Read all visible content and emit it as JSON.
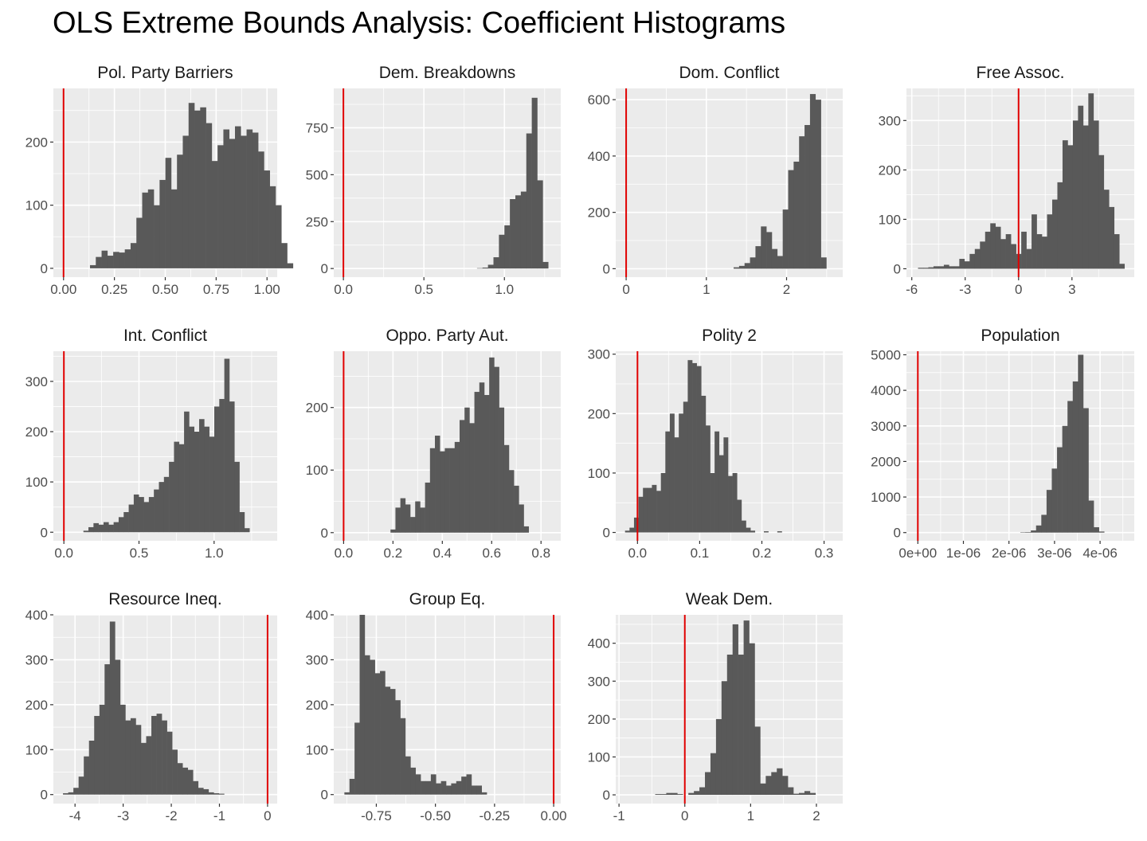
{
  "title": "OLS Extreme Bounds Analysis: Coefficient Histograms",
  "colors": {
    "panel_bg": "#ebebeb",
    "grid": "#ffffff",
    "bars": "#595959",
    "reference_line": "#e00000",
    "tick_text": "#4d4d4d"
  },
  "chart_data": [
    {
      "type": "bar",
      "title": "Pol. Party Barriers",
      "xlim": [
        -0.05,
        1.05
      ],
      "ylim": [
        -14,
        285
      ],
      "xticks": [
        {
          "value": 0,
          "label": "0.00"
        },
        {
          "value": 0.25,
          "label": "0.25"
        },
        {
          "value": 0.5,
          "label": "0.50"
        },
        {
          "value": 0.75,
          "label": "0.75"
        },
        {
          "value": 1.0,
          "label": "1.00"
        }
      ],
      "yticks": [
        {
          "value": 0,
          "label": "0"
        },
        {
          "value": 100,
          "label": "100"
        },
        {
          "value": 200,
          "label": "200"
        }
      ],
      "reference_line": 0,
      "bin_start": 0.13,
      "bin_width": 0.0285,
      "values": [
        5,
        18,
        28,
        20,
        26,
        25,
        30,
        40,
        80,
        120,
        125,
        100,
        140,
        175,
        125,
        180,
        210,
        262,
        250,
        255,
        230,
        170,
        195,
        220,
        205,
        225,
        210,
        220,
        215,
        185,
        155,
        130,
        100,
        40,
        8
      ]
    },
    {
      "type": "bar",
      "title": "Dem. Breakdowns",
      "xlim": [
        -0.06,
        1.35
      ],
      "ylim": [
        -46,
        960
      ],
      "xticks": [
        {
          "value": 0,
          "label": "0.0"
        },
        {
          "value": 0.5,
          "label": "0.5"
        },
        {
          "value": 1.0,
          "label": "1.0"
        }
      ],
      "yticks": [
        {
          "value": 0,
          "label": "0"
        },
        {
          "value": 250,
          "label": "250"
        },
        {
          "value": 500,
          "label": "500"
        },
        {
          "value": 750,
          "label": "750"
        }
      ],
      "reference_line": 0,
      "bin_start": 0.83,
      "bin_width": 0.034,
      "values": [
        2,
        5,
        20,
        60,
        180,
        230,
        370,
        390,
        410,
        720,
        910,
        470,
        35
      ]
    },
    {
      "type": "bar",
      "title": "Dom. Conflict",
      "xlim": [
        -0.13,
        2.7
      ],
      "ylim": [
        -30,
        640
      ],
      "xticks": [
        {
          "value": 0,
          "label": "0"
        },
        {
          "value": 1,
          "label": "1"
        },
        {
          "value": 2,
          "label": "2"
        }
      ],
      "yticks": [
        {
          "value": 0,
          "label": "0"
        },
        {
          "value": 200,
          "label": "200"
        },
        {
          "value": 400,
          "label": "400"
        },
        {
          "value": 600,
          "label": "600"
        }
      ],
      "reference_line": 0,
      "bin_start": 1.34,
      "bin_width": 0.068,
      "values": [
        5,
        10,
        20,
        40,
        80,
        150,
        130,
        70,
        45,
        210,
        350,
        380,
        470,
        510,
        620,
        600,
        40
      ]
    },
    {
      "type": "bar",
      "title": "Free Assoc.",
      "xlim": [
        -6.3,
        6.5
      ],
      "ylim": [
        -17,
        365
      ],
      "xticks": [
        {
          "value": -6,
          "label": "-6"
        },
        {
          "value": -3,
          "label": "-3"
        },
        {
          "value": 0,
          "label": "0"
        },
        {
          "value": 3,
          "label": "3"
        }
      ],
      "yticks": [
        {
          "value": 0,
          "label": "0"
        },
        {
          "value": 100,
          "label": "100"
        },
        {
          "value": 200,
          "label": "200"
        },
        {
          "value": 300,
          "label": "300"
        }
      ],
      "reference_line": 0,
      "bin_start": -5.65,
      "bin_width": 0.29,
      "values": [
        2,
        2,
        3,
        5,
        5,
        8,
        5,
        5,
        20,
        15,
        30,
        40,
        55,
        75,
        92,
        85,
        60,
        70,
        50,
        30,
        75,
        40,
        110,
        70,
        65,
        110,
        140,
        175,
        260,
        250,
        300,
        330,
        290,
        355,
        300,
        230,
        160,
        125,
        70,
        10
      ]
    },
    {
      "type": "bar",
      "title": "Int. Conflict",
      "xlim": [
        -0.07,
        1.42
      ],
      "ylim": [
        -17,
        360
      ],
      "xticks": [
        {
          "value": 0,
          "label": "0.0"
        },
        {
          "value": 0.5,
          "label": "0.5"
        },
        {
          "value": 1.0,
          "label": "1.0"
        }
      ],
      "yticks": [
        {
          "value": 0,
          "label": "0"
        },
        {
          "value": 100,
          "label": "100"
        },
        {
          "value": 200,
          "label": "200"
        },
        {
          "value": 300,
          "label": "300"
        }
      ],
      "reference_line": 0,
      "bin_start": 0.13,
      "bin_width": 0.0335,
      "values": [
        3,
        10,
        18,
        15,
        20,
        15,
        20,
        30,
        40,
        55,
        75,
        70,
        60,
        70,
        85,
        100,
        110,
        140,
        180,
        175,
        240,
        210,
        200,
        225,
        210,
        190,
        250,
        265,
        345,
        260,
        140,
        40,
        8
      ]
    },
    {
      "type": "bar",
      "title": "Oppo. Party Aut.",
      "xlim": [
        -0.04,
        0.88
      ],
      "ylim": [
        -13,
        290
      ],
      "xticks": [
        {
          "value": 0,
          "label": "0.0"
        },
        {
          "value": 0.2,
          "label": "0.2"
        },
        {
          "value": 0.4,
          "label": "0.4"
        },
        {
          "value": 0.6,
          "label": "0.6"
        },
        {
          "value": 0.8,
          "label": "0.8"
        }
      ],
      "yticks": [
        {
          "value": 0,
          "label": "0"
        },
        {
          "value": 100,
          "label": "100"
        },
        {
          "value": 200,
          "label": "200"
        }
      ],
      "reference_line": 0,
      "bin_start": 0.19,
      "bin_width": 0.02,
      "values": [
        5,
        40,
        55,
        45,
        25,
        50,
        40,
        80,
        135,
        155,
        130,
        135,
        135,
        145,
        180,
        200,
        175,
        225,
        240,
        220,
        280,
        265,
        200,
        140,
        100,
        75,
        45,
        10
      ]
    },
    {
      "type": "bar",
      "title": "Polity 2",
      "xlim": [
        -0.035,
        0.33
      ],
      "ylim": [
        -14,
        305
      ],
      "xticks": [
        {
          "value": 0,
          "label": "0.0"
        },
        {
          "value": 0.1,
          "label": "0.1"
        },
        {
          "value": 0.2,
          "label": "0.2"
        },
        {
          "value": 0.3,
          "label": "0.3"
        }
      ],
      "yticks": [
        {
          "value": 0,
          "label": "0"
        },
        {
          "value": 100,
          "label": "100"
        },
        {
          "value": 200,
          "label": "200"
        },
        {
          "value": 300,
          "label": "300"
        }
      ],
      "reference_line": 0,
      "bin_start": -0.02,
      "bin_width": 0.0072,
      "values": [
        3,
        8,
        25,
        60,
        75,
        75,
        80,
        70,
        100,
        170,
        200,
        160,
        200,
        220,
        290,
        285,
        280,
        230,
        180,
        100,
        170,
        130,
        160,
        95,
        100,
        55,
        20,
        8,
        3,
        0,
        0,
        2,
        0,
        0,
        2
      ]
    },
    {
      "type": "bar",
      "title": "Population",
      "xlim": [
        -2.5e-07,
        4.75e-06
      ],
      "ylim": [
        -230,
        5100
      ],
      "xticks": [
        {
          "value": 0,
          "label": "0e+00"
        },
        {
          "value": 1e-06,
          "label": "1e-06"
        },
        {
          "value": 2e-06,
          "label": "2e-06"
        },
        {
          "value": 3e-06,
          "label": "3e-06"
        },
        {
          "value": 4e-06,
          "label": "4e-06"
        }
      ],
      "yticks": [
        {
          "value": 0,
          "label": "0"
        },
        {
          "value": 1000,
          "label": "1000"
        },
        {
          "value": 2000,
          "label": "2000"
        },
        {
          "value": 3000,
          "label": "3000"
        },
        {
          "value": 4000,
          "label": "4000"
        },
        {
          "value": 5000,
          "label": "5000"
        }
      ],
      "reference_line": 0,
      "bin_start": 2.25e-06,
      "bin_width": 1.15e-07,
      "values": [
        5,
        15,
        60,
        200,
        500,
        1200,
        1800,
        2400,
        3000,
        3700,
        4250,
        5000,
        3500,
        900,
        150,
        30
      ]
    },
    {
      "type": "bar",
      "title": "Resource Ineq.",
      "xlim": [
        -4.45,
        0.2
      ],
      "ylim": [
        -20,
        400
      ],
      "xticks": [
        {
          "value": -4,
          "label": "-4"
        },
        {
          "value": -3,
          "label": "-3"
        },
        {
          "value": -2,
          "label": "-2"
        },
        {
          "value": -1,
          "label": "-1"
        },
        {
          "value": 0,
          "label": "0"
        }
      ],
      "yticks": [
        {
          "value": 0,
          "label": "0"
        },
        {
          "value": 100,
          "label": "100"
        },
        {
          "value": 200,
          "label": "200"
        },
        {
          "value": 300,
          "label": "300"
        },
        {
          "value": 400,
          "label": "400"
        }
      ],
      "reference_line": 0,
      "bin_start": -4.25,
      "bin_width": 0.108,
      "values": [
        3,
        5,
        15,
        40,
        85,
        120,
        175,
        200,
        290,
        385,
        300,
        200,
        165,
        170,
        155,
        115,
        130,
        175,
        180,
        165,
        140,
        100,
        70,
        60,
        55,
        30,
        15,
        12,
        5,
        3,
        2
      ]
    },
    {
      "type": "bar",
      "title": "Group Eq.",
      "xlim": [
        -0.93,
        0.03
      ],
      "ylim": [
        -20,
        400
      ],
      "xticks": [
        {
          "value": -0.75,
          "label": "-0.75"
        },
        {
          "value": -0.5,
          "label": "-0.50"
        },
        {
          "value": -0.25,
          "label": "-0.25"
        },
        {
          "value": 0,
          "label": "0.00"
        }
      ],
      "yticks": [
        {
          "value": 0,
          "label": "0"
        },
        {
          "value": 100,
          "label": "100"
        },
        {
          "value": 200,
          "label": "200"
        },
        {
          "value": 300,
          "label": "300"
        },
        {
          "value": 400,
          "label": "400"
        }
      ],
      "reference_line": 0,
      "bin_start": -0.885,
      "bin_width": 0.0215,
      "values": [
        5,
        35,
        160,
        400,
        310,
        300,
        270,
        275,
        240,
        235,
        210,
        170,
        85,
        60,
        45,
        30,
        30,
        45,
        25,
        30,
        20,
        25,
        30,
        40,
        45,
        20,
        20,
        5
      ]
    },
    {
      "type": "bar",
      "title": "Weak Dem.",
      "xlim": [
        -1.05,
        2.4
      ],
      "ylim": [
        -23,
        475
      ],
      "xticks": [
        {
          "value": -1,
          "label": "-1"
        },
        {
          "value": 0,
          "label": "0"
        },
        {
          "value": 1,
          "label": "1"
        },
        {
          "value": 2,
          "label": "2"
        }
      ],
      "yticks": [
        {
          "value": 0,
          "label": "0"
        },
        {
          "value": 100,
          "label": "100"
        },
        {
          "value": 200,
          "label": "200"
        },
        {
          "value": 300,
          "label": "300"
        },
        {
          "value": 400,
          "label": "400"
        }
      ],
      "reference_line": 0,
      "bin_start": -0.45,
      "bin_width": 0.084,
      "values": [
        2,
        2,
        5,
        5,
        2,
        0,
        5,
        10,
        20,
        60,
        110,
        200,
        300,
        370,
        450,
        370,
        460,
        400,
        180,
        30,
        50,
        60,
        70,
        50,
        20,
        3,
        5,
        10,
        5
      ]
    }
  ]
}
